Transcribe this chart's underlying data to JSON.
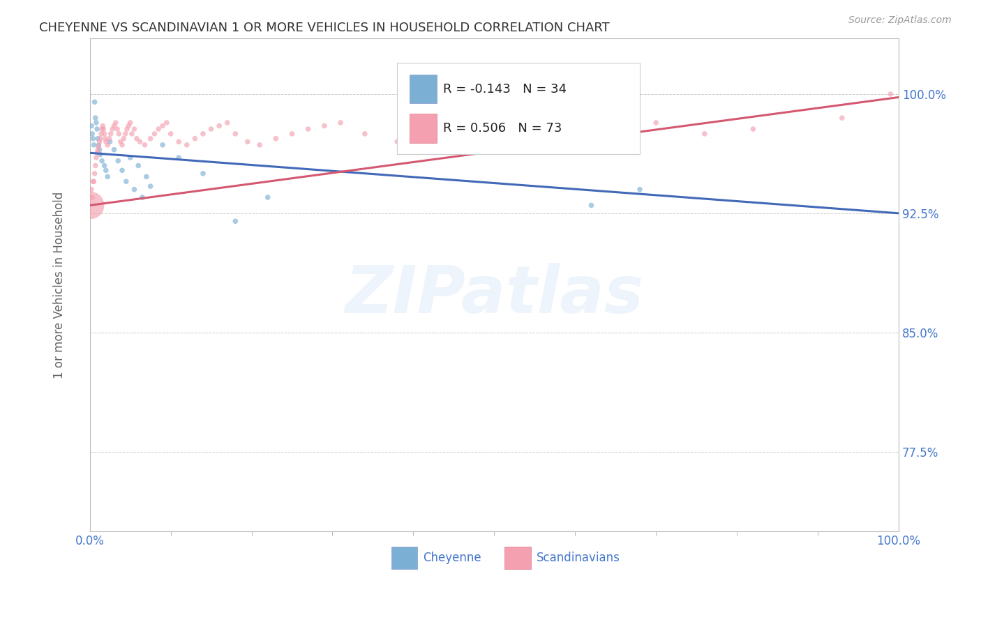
{
  "title": "CHEYENNE VS SCANDINAVIAN 1 OR MORE VEHICLES IN HOUSEHOLD CORRELATION CHART",
  "source": "Source: ZipAtlas.com",
  "ylabel": "1 or more Vehicles in Household",
  "xlim": [
    0.0,
    1.0
  ],
  "ylim": [
    0.725,
    1.035
  ],
  "yticks": [
    0.775,
    0.85,
    0.925,
    1.0
  ],
  "ytick_labels": [
    "77.5%",
    "85.0%",
    "92.5%",
    "100.0%"
  ],
  "xtick_labels": [
    "0.0%",
    "100.0%"
  ],
  "legend_r1": "R = -0.143",
  "legend_n1": "N = 34",
  "legend_r2": "R = 0.506",
  "legend_n2": "N = 73",
  "legend_label1": "Cheyenne",
  "legend_label2": "Scandinavians",
  "blue_color": "#7BAFD4",
  "pink_color": "#F4A0B0",
  "blue_line_color": "#4169B8",
  "pink_line_color": "#D45870",
  "watermark_text": "ZIPatlas",
  "watermark_color": "#AACCEE",
  "background_color": "#FFFFFF",
  "grid_color": "#CCCCCC",
  "title_fontsize": 13,
  "tick_label_color": "#4477CC",
  "source_color": "#999999",
  "axis_label_color": "#666666",
  "cheyenne_x": [
    0.002,
    0.003,
    0.004,
    0.005,
    0.006,
    0.007,
    0.008,
    0.009,
    0.01,
    0.011,
    0.012,
    0.013,
    0.015,
    0.018,
    0.02,
    0.022,
    0.025,
    0.03,
    0.035,
    0.04,
    0.045,
    0.05,
    0.055,
    0.06,
    0.065,
    0.07,
    0.075,
    0.09,
    0.11,
    0.14,
    0.18,
    0.22,
    0.62,
    0.68
  ],
  "cheyenne_y": [
    0.98,
    0.975,
    0.972,
    0.968,
    0.995,
    0.985,
    0.982,
    0.978,
    0.972,
    0.968,
    0.965,
    0.962,
    0.958,
    0.955,
    0.952,
    0.948,
    0.97,
    0.965,
    0.958,
    0.952,
    0.945,
    0.96,
    0.94,
    0.955,
    0.935,
    0.948,
    0.942,
    0.968,
    0.96,
    0.95,
    0.92,
    0.935,
    0.93,
    0.94
  ],
  "scandinavian_x": [
    0.001,
    0.002,
    0.003,
    0.004,
    0.005,
    0.006,
    0.007,
    0.008,
    0.009,
    0.01,
    0.011,
    0.012,
    0.013,
    0.014,
    0.015,
    0.016,
    0.017,
    0.018,
    0.019,
    0.02,
    0.022,
    0.024,
    0.026,
    0.028,
    0.03,
    0.032,
    0.034,
    0.036,
    0.038,
    0.04,
    0.042,
    0.044,
    0.046,
    0.048,
    0.05,
    0.052,
    0.055,
    0.058,
    0.062,
    0.068,
    0.075,
    0.08,
    0.085,
    0.09,
    0.095,
    0.1,
    0.11,
    0.12,
    0.13,
    0.14,
    0.15,
    0.16,
    0.17,
    0.18,
    0.195,
    0.21,
    0.23,
    0.25,
    0.27,
    0.29,
    0.31,
    0.34,
    0.38,
    0.43,
    0.48,
    0.53,
    0.58,
    0.64,
    0.7,
    0.76,
    0.82,
    0.93,
    0.99
  ],
  "scandinavian_y": [
    0.93,
    0.94,
    0.935,
    0.945,
    0.945,
    0.95,
    0.955,
    0.96,
    0.963,
    0.965,
    0.967,
    0.97,
    0.972,
    0.975,
    0.978,
    0.98,
    0.978,
    0.975,
    0.972,
    0.97,
    0.968,
    0.972,
    0.975,
    0.978,
    0.98,
    0.982,
    0.978,
    0.975,
    0.97,
    0.968,
    0.972,
    0.975,
    0.978,
    0.98,
    0.982,
    0.975,
    0.978,
    0.972,
    0.97,
    0.968,
    0.972,
    0.975,
    0.978,
    0.98,
    0.982,
    0.975,
    0.97,
    0.968,
    0.972,
    0.975,
    0.978,
    0.98,
    0.982,
    0.975,
    0.97,
    0.968,
    0.972,
    0.975,
    0.978,
    0.98,
    0.982,
    0.975,
    0.97,
    0.968,
    0.972,
    0.975,
    0.978,
    0.98,
    0.982,
    0.975,
    0.978,
    0.985,
    1.0
  ],
  "scandinavian_sizes": [
    800,
    30,
    30,
    30,
    30,
    30,
    30,
    30,
    30,
    30,
    30,
    30,
    30,
    30,
    30,
    30,
    30,
    30,
    30,
    30,
    30,
    30,
    30,
    30,
    30,
    30,
    30,
    30,
    30,
    30,
    30,
    30,
    30,
    30,
    30,
    30,
    30,
    30,
    30,
    30,
    30,
    30,
    30,
    30,
    30,
    30,
    30,
    30,
    30,
    30,
    30,
    30,
    30,
    30,
    30,
    30,
    30,
    30,
    30,
    30,
    30,
    30,
    30,
    30,
    30,
    30,
    30,
    30,
    30,
    30,
    30,
    30,
    30
  ],
  "cheyenne_sizes": [
    30,
    30,
    30,
    30,
    30,
    30,
    30,
    30,
    30,
    30,
    30,
    30,
    30,
    30,
    30,
    30,
    30,
    30,
    30,
    30,
    30,
    30,
    30,
    30,
    30,
    30,
    30,
    30,
    30,
    30,
    30,
    30,
    30,
    30
  ]
}
